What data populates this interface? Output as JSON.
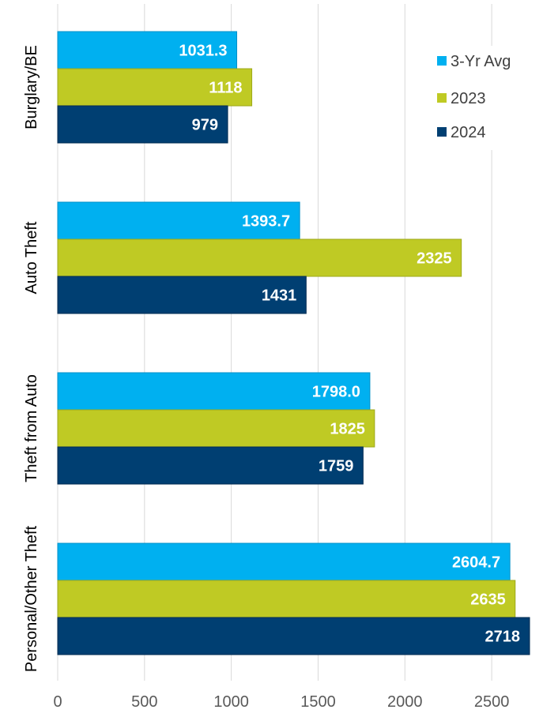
{
  "chart_data": {
    "type": "bar",
    "orientation": "horizontal",
    "categories": [
      "Burglary/BE",
      "Auto Theft",
      "Theft from Auto",
      "Personal/Other Theft"
    ],
    "series": [
      {
        "name": "3-Yr Avg",
        "color": "#00B0F0",
        "values": [
          1031.3,
          1393.7,
          1798.0,
          2604.7
        ],
        "labels": [
          "1031.3",
          "1393.7",
          "1798.0",
          "2604.7"
        ]
      },
      {
        "name": "2023",
        "color": "#BFCA24",
        "values": [
          1118,
          2325,
          1825,
          2635
        ],
        "labels": [
          "1118",
          "2325",
          "1825",
          "2635"
        ]
      },
      {
        "name": "2024",
        "color": "#003F72",
        "values": [
          979,
          1431,
          1759,
          2718
        ],
        "labels": [
          "979",
          "1431",
          "1759",
          "2718"
        ]
      }
    ],
    "xlim": [
      0,
      2718
    ],
    "xticks": [
      0,
      500,
      1000,
      1500,
      2000,
      2500
    ],
    "grid": true,
    "legend_position": "top-right",
    "title": "",
    "xlabel": "",
    "ylabel": ""
  }
}
